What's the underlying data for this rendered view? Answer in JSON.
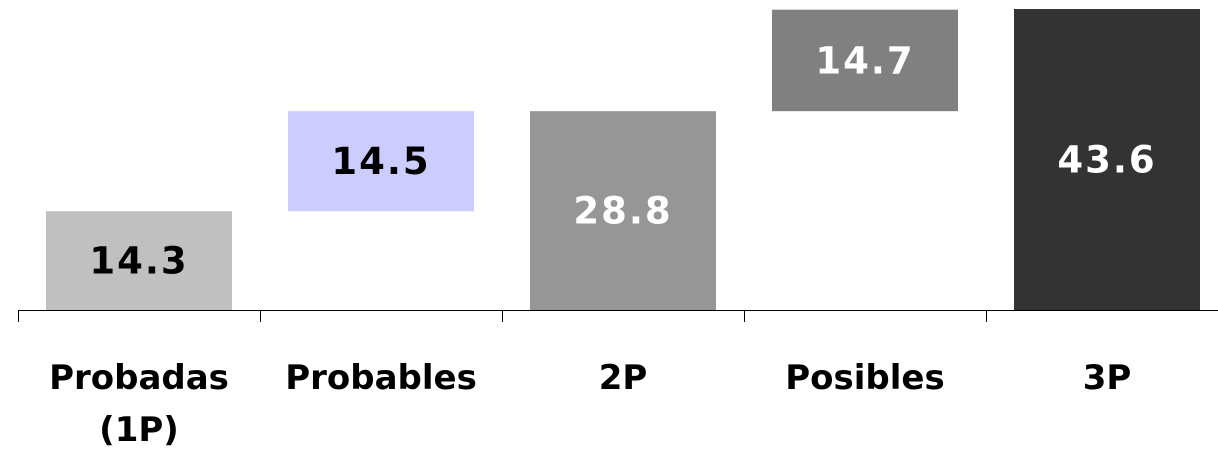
{
  "chart_data": {
    "type": "bar",
    "subtype": "waterfall",
    "categories": [
      [
        "Probadas",
        "(1P)"
      ],
      [
        "Probables"
      ],
      [
        "2P"
      ],
      [
        "Posibles"
      ],
      [
        "3P"
      ]
    ],
    "series": [
      {
        "values": [
          14.3,
          14.5,
          28.8,
          14.7,
          43.6
        ],
        "labels": [
          "14.3",
          "14.5",
          "28.8",
          "14.7",
          "43.6"
        ],
        "base": [
          0,
          14.3,
          0,
          28.8,
          0
        ],
        "colors": [
          "#c0c0c0",
          "#ccccff",
          "#969696",
          "#808080",
          "#333333"
        ],
        "label_colors": [
          "#000000",
          "#000000",
          "#ffffff",
          "#ffffff",
          "#ffffff"
        ]
      }
    ],
    "ylim": [
      0,
      43.6
    ],
    "grid": false,
    "legend": "none",
    "title": "",
    "xlabel": "",
    "ylabel": ""
  }
}
